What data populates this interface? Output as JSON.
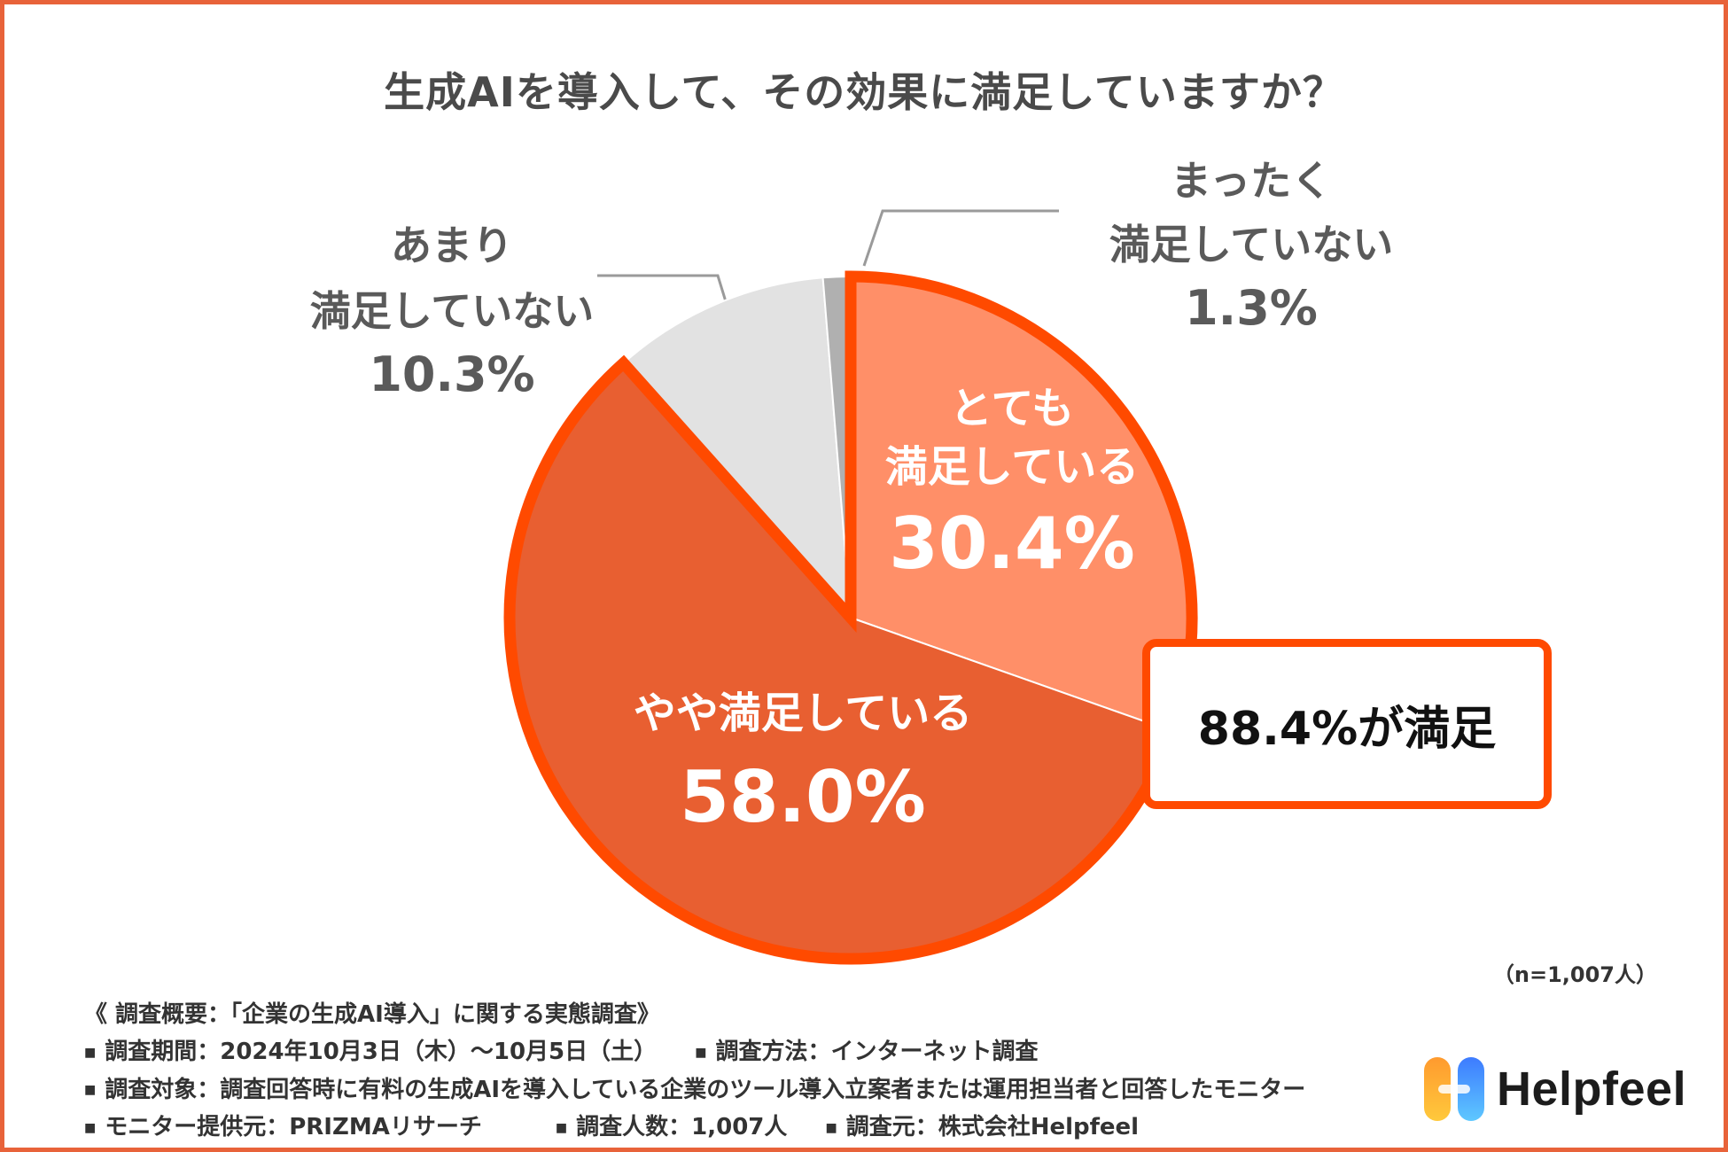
{
  "title": "生成AIを導入して、その効果に満足していますか？",
  "chart_data": {
    "type": "pie",
    "title": "生成AIを導入して、その効果に満足していますか？",
    "slices": [
      {
        "label": "とても満足している",
        "label_lines": [
          "とても",
          "満足している"
        ],
        "value": 30.4,
        "display": "30.4%",
        "color": "#FF8F68",
        "highlight": true
      },
      {
        "label": "やや満足している",
        "label_lines": [
          "やや満足している"
        ],
        "value": 58.0,
        "display": "58.0%",
        "color": "#E85F31",
        "highlight": true
      },
      {
        "label": "あまり満足していない",
        "label_lines": [
          "あまり",
          "満足していない"
        ],
        "value": 10.3,
        "display": "10.3%",
        "color": "#E2E2E2",
        "highlight": false
      },
      {
        "label": "まったく満足していない",
        "label_lines": [
          "まったく",
          "満足していない"
        ],
        "value": 1.3,
        "display": "1.3%",
        "color": "#B0B0B0",
        "highlight": false
      }
    ],
    "start": "12 o'clock",
    "direction": "clockwise",
    "highlight_outline_color": "#FF4A00"
  },
  "callout": "88.4%が満足",
  "sample_size": "（n=1,007人）",
  "survey": {
    "heading": "《 調査概要：「企業の生成AI導入」に関する実態調査》",
    "rows": [
      [
        "調査期間：2024年10月3日（木）〜10月5日（土）",
        "調査方法：インターネット調査"
      ],
      [
        "調査対象：調査回答時に有料の生成AIを導入している企業のツール導入立案者または運用担当者と回答したモニター"
      ],
      [
        "モニター提供元：PRIZMAリサーチ",
        "調査人数：1,007人",
        "調査元：株式会社Helpfeel"
      ]
    ],
    "bullet": "■"
  },
  "brand": {
    "name": "Helpfeel",
    "logo_icon": "helpfeel-logo-icon"
  },
  "colors": {
    "frame": "#E8633A",
    "accent": "#FF4A00",
    "title_text": "#4a4a4a"
  }
}
